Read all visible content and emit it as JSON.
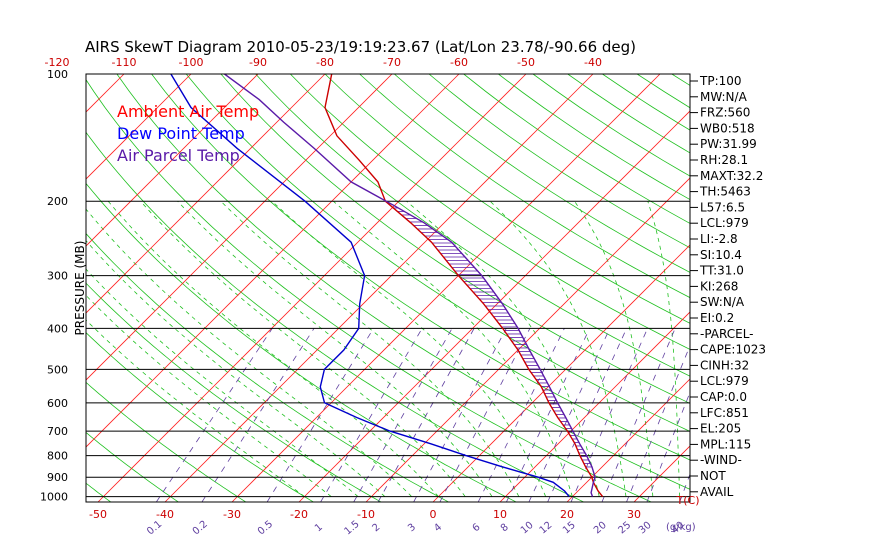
{
  "chart_data": {
    "type": "line",
    "title": "AIRS SkewT Diagram 2010-05-23/19:19:23.67 (Lat/Lon 23.78/-90.66 deg)",
    "ylabel": "PRESSURE (MB)",
    "xlabel": "T(C)",
    "mixing_ratio_label": "(g/kg)",
    "y_scale": "log",
    "ylim": [
      1030,
      100
    ],
    "xlim_bottom_celsius": [
      -50,
      40
    ],
    "pressure_ticks": [
      100,
      200,
      300,
      400,
      500,
      600,
      700,
      800,
      900,
      1000
    ],
    "bottom_temp_ticks": [
      "-50",
      "-40",
      "-30",
      "-20",
      "-10",
      "0",
      "10",
      "20",
      "30"
    ],
    "top_temp_ticks": [
      "-120",
      "-110",
      "-100",
      "-90",
      "-80",
      "-70",
      "-60",
      "-50",
      "-40"
    ],
    "mixing_ratio_ticks": [
      "0.1",
      "0.2",
      "0.5",
      "1",
      "1.5",
      "2",
      "3",
      "4",
      "6",
      "8",
      "10",
      "12",
      "15",
      "20",
      "25",
      "30",
      "40"
    ],
    "legend": [
      {
        "name": "Ambient Air Temp",
        "color": "#ff0000"
      },
      {
        "name": "Dew Point Temp",
        "color": "#0000ff"
      },
      {
        "name": "Air Parcel Temp",
        "color": "#5a1aa8"
      }
    ],
    "series": [
      {
        "name": "Ambient Air Temp",
        "color": "#cc0000",
        "points": [
          [
            1000,
            24.5
          ],
          [
            970,
            23
          ],
          [
            925,
            21
          ],
          [
            900,
            20
          ],
          [
            850,
            17.5
          ],
          [
            800,
            15
          ],
          [
            750,
            12.5
          ],
          [
            700,
            9.5
          ],
          [
            650,
            6
          ],
          [
            600,
            2.5
          ],
          [
            550,
            -1
          ],
          [
            500,
            -5.5
          ],
          [
            450,
            -10
          ],
          [
            400,
            -15.5
          ],
          [
            350,
            -22
          ],
          [
            300,
            -30
          ],
          [
            250,
            -39
          ],
          [
            225,
            -45
          ],
          [
            200,
            -52
          ],
          [
            180,
            -56
          ],
          [
            160,
            -62
          ],
          [
            140,
            -69
          ],
          [
            120,
            -75
          ],
          [
            100,
            -79
          ]
        ]
      },
      {
        "name": "Dew Point Temp",
        "color": "#0000cc",
        "points": [
          [
            1000,
            19.5
          ],
          [
            970,
            18
          ],
          [
            925,
            15
          ],
          [
            900,
            12
          ],
          [
            850,
            5
          ],
          [
            800,
            -2
          ],
          [
            750,
            -9
          ],
          [
            700,
            -17
          ],
          [
            650,
            -24
          ],
          [
            600,
            -31
          ],
          [
            550,
            -34
          ],
          [
            500,
            -36
          ],
          [
            450,
            -36
          ],
          [
            400,
            -37
          ],
          [
            350,
            -40.5
          ],
          [
            300,
            -44
          ],
          [
            250,
            -51
          ],
          [
            200,
            -64
          ],
          [
            150,
            -82
          ],
          [
            120,
            -95
          ],
          [
            100,
            -103
          ]
        ]
      },
      {
        "name": "Air Parcel Temp",
        "color": "#5a1aa8",
        "points": [
          [
            1000,
            23
          ],
          [
            979,
            22.2
          ],
          [
            925,
            21
          ],
          [
            900,
            20.5
          ],
          [
            851,
            18.5
          ],
          [
            800,
            16
          ],
          [
            750,
            13.2
          ],
          [
            700,
            10.3
          ],
          [
            650,
            7.2
          ],
          [
            600,
            3.8
          ],
          [
            550,
            0.2
          ],
          [
            500,
            -3.8
          ],
          [
            450,
            -8.3
          ],
          [
            400,
            -13.2
          ],
          [
            350,
            -19.2
          ],
          [
            300,
            -26.5
          ],
          [
            250,
            -36
          ],
          [
            225,
            -43
          ],
          [
            205,
            -50
          ],
          [
            180,
            -60
          ],
          [
            150,
            -70.5
          ],
          [
            130,
            -79
          ],
          [
            115,
            -86
          ],
          [
            100,
            -95
          ]
        ]
      }
    ],
    "cape_shading": {
      "from_hpa": 851,
      "to_hpa": 205
    }
  },
  "indices": [
    "TP:100",
    "MW:N/A",
    "FRZ:560",
    "WB0:518",
    "PW:31.99",
    "RH:28.1",
    "MAXT:32.2",
    "TH:5463",
    "L57:6.5",
    "LCL:979",
    "LI:-2.8",
    "SI:10.4",
    "TT:31.0",
    "KI:268",
    "SW:N/A",
    "EI:0.2",
    "-PARCEL-",
    "CAPE:1023",
    "CINH:32",
    "LCL:979",
    "CAP:0.0",
    "LFC:851",
    "EL:205",
    "MPL:115",
    "-WIND-",
    "NOT",
    "AVAIL"
  ]
}
